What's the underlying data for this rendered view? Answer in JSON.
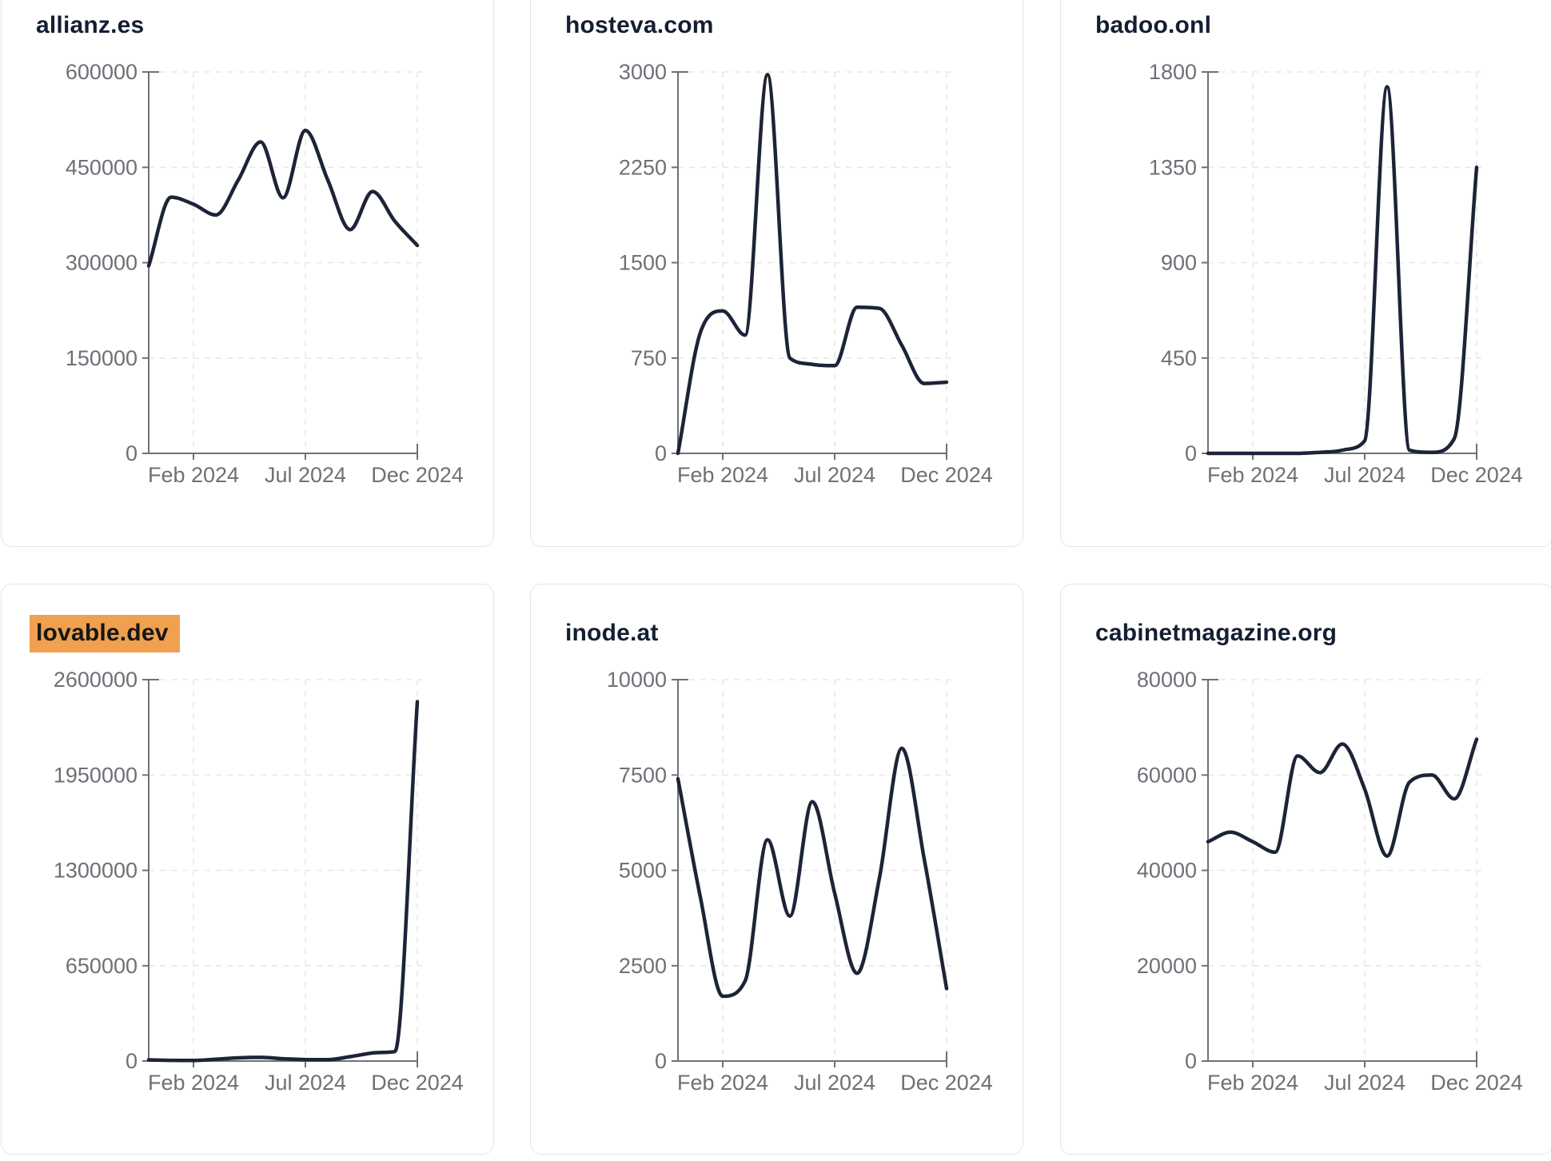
{
  "style": {
    "page_background": "#ffffff",
    "card_background": "#ffffff",
    "card_border_color": "#e5e5ea",
    "title_color": "#141e33",
    "line_color": "#1d2438",
    "axis_color": "#70707a",
    "axis_label_color": "#6e7076",
    "grid_color": "#e8e8e8",
    "highlight_color": "#f0a04f"
  },
  "chart_data": [
    {
      "type": "line",
      "title": "allianz.es",
      "highlighted": false,
      "x": [
        "Dec 2023",
        "Jan 2024",
        "Feb 2024",
        "Mar 2024",
        "Apr 2024",
        "May 2024",
        "Jun 2024",
        "Jul 2024",
        "Aug 2024",
        "Sep 2024",
        "Oct 2024",
        "Nov 2024",
        "Dec 2024"
      ],
      "values": [
        295000,
        403000,
        392000,
        375000,
        430000,
        490000,
        402000,
        508000,
        430000,
        352000,
        412000,
        365000,
        327000
      ],
      "x_tick_labels": [
        "Feb 2024",
        "Jul 2024",
        "Dec 2024"
      ],
      "x_tick_positions": [
        2,
        7,
        12
      ],
      "y_ticks": [
        0,
        150000,
        300000,
        450000,
        600000
      ],
      "ylim": [
        0,
        600000
      ],
      "grid": "dashed",
      "legend": "none"
    },
    {
      "type": "line",
      "title": "hosteva.com",
      "highlighted": false,
      "x": [
        "Dec 2023",
        "Jan 2024",
        "Feb 2024",
        "Mar 2024",
        "Apr 2024",
        "May 2024",
        "Jun 2024",
        "Jul 2024",
        "Aug 2024",
        "Sep 2024",
        "Oct 2024",
        "Nov 2024",
        "Dec 2024"
      ],
      "values": [
        0,
        950,
        1120,
        930,
        2980,
        750,
        700,
        690,
        1150,
        1140,
        850,
        550,
        560
      ],
      "x_tick_labels": [
        "Feb 2024",
        "Jul 2024",
        "Dec 2024"
      ],
      "x_tick_positions": [
        2,
        7,
        12
      ],
      "y_ticks": [
        0,
        750,
        1500,
        2250,
        3000
      ],
      "ylim": [
        0,
        3000
      ],
      "grid": "dashed",
      "legend": "none"
    },
    {
      "type": "line",
      "title": "badoo.onl",
      "highlighted": false,
      "x": [
        "Dec 2023",
        "Jan 2024",
        "Feb 2024",
        "Mar 2024",
        "Apr 2024",
        "May 2024",
        "Jun 2024",
        "Jul 2024",
        "Aug 2024",
        "Sep 2024",
        "Oct 2024",
        "Nov 2024",
        "Dec 2024"
      ],
      "values": [
        0,
        0,
        0,
        0,
        0,
        5,
        15,
        60,
        1730,
        15,
        5,
        70,
        1350
      ],
      "x_tick_labels": [
        "Feb 2024",
        "Jul 2024",
        "Dec 2024"
      ],
      "x_tick_positions": [
        2,
        7,
        12
      ],
      "y_ticks": [
        0,
        450,
        900,
        1350,
        1800
      ],
      "ylim": [
        0,
        1800
      ],
      "grid": "dashed",
      "legend": "none"
    },
    {
      "type": "line",
      "title": "lovable.dev",
      "highlighted": true,
      "x": [
        "Dec 2023",
        "Jan 2024",
        "Feb 2024",
        "Mar 2024",
        "Apr 2024",
        "May 2024",
        "Jun 2024",
        "Jul 2024",
        "Aug 2024",
        "Sep 2024",
        "Oct 2024",
        "Nov 2024",
        "Dec 2024"
      ],
      "values": [
        8000,
        5000,
        4000,
        12000,
        22000,
        25000,
        16000,
        10000,
        9000,
        30000,
        55000,
        65000,
        2450000
      ],
      "x_tick_labels": [
        "Feb 2024",
        "Jul 2024",
        "Dec 2024"
      ],
      "x_tick_positions": [
        2,
        7,
        12
      ],
      "y_ticks": [
        0,
        650000,
        1300000,
        1950000,
        2600000
      ],
      "ylim": [
        0,
        2600000
      ],
      "grid": "dashed",
      "legend": "none"
    },
    {
      "type": "line",
      "title": "inode.at",
      "highlighted": false,
      "x": [
        "Dec 2023",
        "Jan 2024",
        "Feb 2024",
        "Mar 2024",
        "Apr 2024",
        "May 2024",
        "Jun 2024",
        "Jul 2024",
        "Aug 2024",
        "Sep 2024",
        "Oct 2024",
        "Nov 2024",
        "Dec 2024"
      ],
      "values": [
        7400,
        4300,
        1700,
        2100,
        5800,
        3800,
        6800,
        4400,
        2300,
        4800,
        8200,
        5300,
        1900
      ],
      "x_tick_labels": [
        "Feb 2024",
        "Jul 2024",
        "Dec 2024"
      ],
      "x_tick_positions": [
        2,
        7,
        12
      ],
      "y_ticks": [
        0,
        2500,
        5000,
        7500,
        10000
      ],
      "ylim": [
        0,
        10000
      ],
      "grid": "dashed",
      "legend": "none"
    },
    {
      "type": "line",
      "title": "cabinetmagazine.org",
      "highlighted": false,
      "x": [
        "Dec 2023",
        "Jan 2024",
        "Feb 2024",
        "Mar 2024",
        "Apr 2024",
        "May 2024",
        "Jun 2024",
        "Jul 2024",
        "Aug 2024",
        "Sep 2024",
        "Oct 2024",
        "Nov 2024",
        "Dec 2024"
      ],
      "values": [
        46000,
        48000,
        46000,
        43800,
        64000,
        60500,
        66500,
        57000,
        43000,
        58500,
        60000,
        55000,
        67500
      ],
      "x_tick_labels": [
        "Feb 2024",
        "Jul 2024",
        "Dec 2024"
      ],
      "x_tick_positions": [
        2,
        7,
        12
      ],
      "y_ticks": [
        0,
        20000,
        40000,
        60000,
        80000
      ],
      "ylim": [
        0,
        80000
      ],
      "grid": "dashed",
      "legend": "none"
    }
  ]
}
